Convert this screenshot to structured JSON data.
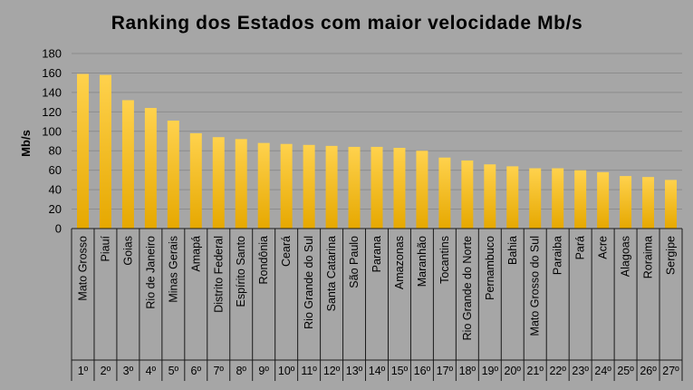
{
  "chart_data": {
    "type": "bar",
    "title": "Ranking dos Estados com maior velocidade Mb/s",
    "ylabel": "Mb/s",
    "xlabel": "",
    "ylim": [
      0,
      180
    ],
    "yticks": [
      0,
      20,
      40,
      60,
      80,
      100,
      120,
      140,
      160,
      180
    ],
    "grid": true,
    "legend": "none",
    "bar_color_top": "#ffd24d",
    "bar_color_bottom": "#e6a800",
    "background_color": "#a6a6a6",
    "categories": [
      "Mato Grosso",
      "Piauí",
      "Goias",
      "Rio de Janeiro",
      "Minas Gerais",
      "Amapá",
      "Distrito Federal",
      "Espírito Santo",
      "Rondônia",
      "Ceará",
      "Rio Grande do Sul",
      "Santa Catarina",
      "São Paulo",
      "Parana",
      "Amazonas",
      "Maranhão",
      "Tocantins",
      "Rio Grande do Norte",
      "Pernambuco",
      "Bahia",
      "Mato Grosso do Sul",
      "Paraiba",
      "Pará",
      "Acre",
      "Alagoas",
      "Roraima",
      "Sergipe"
    ],
    "ranks": [
      "1º",
      "2º",
      "3º",
      "4º",
      "5º",
      "6º",
      "7º",
      "8º",
      "9º",
      "10º",
      "11º",
      "12º",
      "13º",
      "14º",
      "15º",
      "16º",
      "17º",
      "18º",
      "19º",
      "20º",
      "21º",
      "22º",
      "23º",
      "24º",
      "25º",
      "26º",
      "27º"
    ],
    "values": [
      159,
      158,
      132,
      124,
      111,
      98,
      94,
      92,
      88,
      87,
      86,
      85,
      84,
      84,
      83,
      80,
      73,
      70,
      66,
      64,
      62,
      62,
      60,
      58,
      54,
      53,
      50
    ]
  }
}
